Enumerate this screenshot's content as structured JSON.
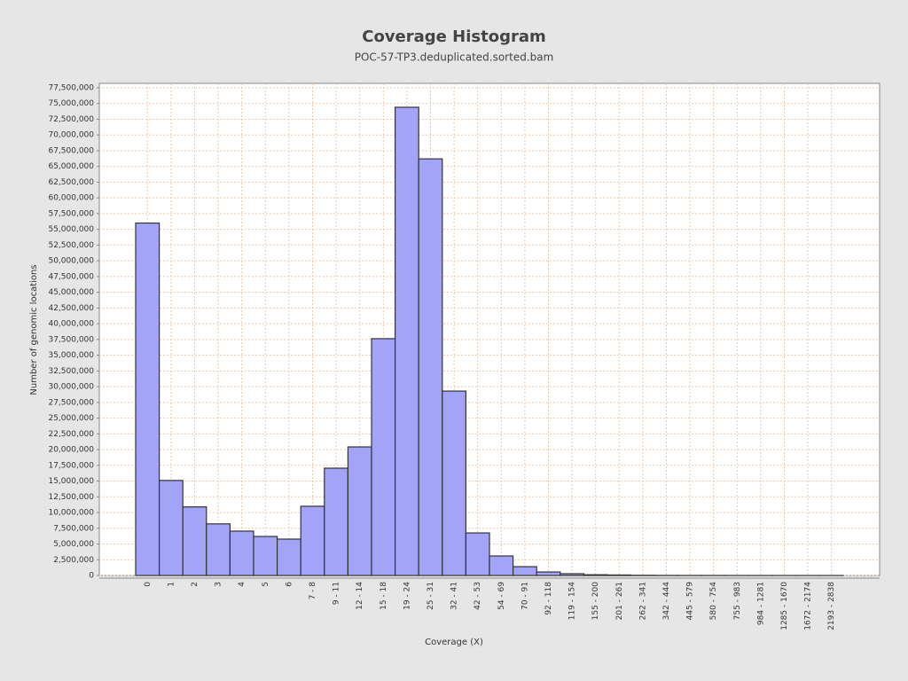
{
  "chart_data": {
    "type": "bar",
    "title": "Coverage Histogram",
    "subtitle": "POC-57-TP3.deduplicated.sorted.bam",
    "x_label": "Coverage (X)",
    "y_label": "Number of genomic locations",
    "categories": [
      "0",
      "1",
      "2",
      "3",
      "4",
      "5",
      "6",
      "7 - 8",
      "9 - 11",
      "12 - 14",
      "15 - 18",
      "19 - 24",
      "25 - 31",
      "32 - 41",
      "42 - 53",
      "54 - 69",
      "70 - 91",
      "92 - 118",
      "119 - 154",
      "155 - 200",
      "201 - 261",
      "262 - 341",
      "342 - 444",
      "445 - 579",
      "580 - 754",
      "755 - 983",
      "984 - 1281",
      "1285 - 1670",
      "1672 - 2174",
      "2193 - 2838"
    ],
    "values": [
      56000000,
      15100000,
      10900000,
      8200000,
      7050000,
      6200000,
      5780000,
      11000000,
      17050000,
      20430000,
      37630000,
      74400000,
      66200000,
      29300000,
      6760000,
      3100000,
      1400000,
      560000,
      280000,
      120000,
      80000,
      30000,
      15000,
      8000,
      5000,
      3000,
      2000,
      1000,
      1000,
      500
    ],
    "color": "#a3a3f7",
    "ylim": [
      0,
      78200000
    ],
    "yticks": [
      0,
      {
        "value": 2500000,
        "label": "2,500,000"
      },
      {
        "value": 5000000,
        "label": "5,000,000"
      },
      {
        "value": 7500000,
        "label": "7,500,000"
      },
      {
        "value": 10000000,
        "label": "10,000,000"
      },
      {
        "value": 12500000,
        "label": "12,500,000"
      },
      {
        "value": 15000000,
        "label": "15,000,000"
      },
      {
        "value": 17500000,
        "label": "17,500,000"
      },
      {
        "value": 20000000,
        "label": "20,000,000"
      },
      {
        "value": 22500000,
        "label": "22,500,000"
      },
      {
        "value": 25000000,
        "label": "25,000,000"
      },
      {
        "value": 27500000,
        "label": "27,500,000"
      },
      {
        "value": 30000000,
        "label": "30,000,000"
      },
      {
        "value": 32500000,
        "label": "32,500,000"
      },
      {
        "value": 35000000,
        "label": "35,000,000"
      },
      {
        "value": 37500000,
        "label": "37,500,000"
      },
      {
        "value": 40000000,
        "label": "40,000,000"
      },
      {
        "value": 42500000,
        "label": "42,500,000"
      },
      {
        "value": 45000000,
        "label": "45,000,000"
      },
      {
        "value": 47500000,
        "label": "47,500,000"
      },
      {
        "value": 50000000,
        "label": "50,000,000"
      },
      {
        "value": 52500000,
        "label": "52,500,000"
      },
      {
        "value": 55000000,
        "label": "55,000,000"
      },
      {
        "value": 57500000,
        "label": "57,500,000"
      },
      {
        "value": 60000000,
        "label": "60,000,000"
      },
      {
        "value": 62500000,
        "label": "62,500,000"
      },
      {
        "value": 65000000,
        "label": "65,000,000"
      },
      {
        "value": 67500000,
        "label": "67,500,000"
      },
      {
        "value": 70000000,
        "label": "70,000,000"
      },
      {
        "value": 72500000,
        "label": "72,500,000"
      },
      {
        "value": 75000000,
        "label": "75,000,000"
      },
      {
        "value": 77500000,
        "label": "77,500,000"
      }
    ],
    "grid": true
  }
}
